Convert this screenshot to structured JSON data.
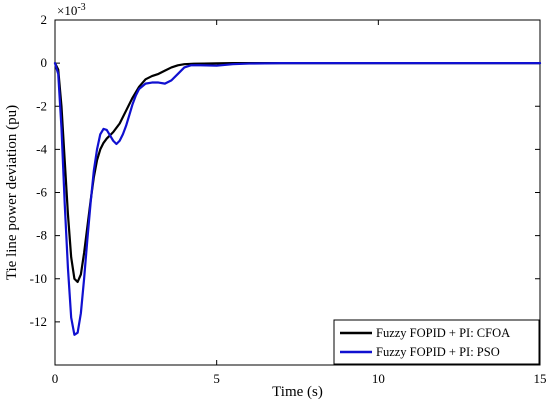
{
  "chart_data": {
    "type": "line",
    "title": "",
    "xlabel": "Time (s)",
    "ylabel": "Tie line power deviation (pu)",
    "y_exponent_label": "×10",
    "y_exponent_power": "-3",
    "xlim": [
      0,
      15
    ],
    "ylim": [
      -14,
      2
    ],
    "xticks": [
      0,
      5,
      10,
      15
    ],
    "yticks": [
      2,
      0,
      -2,
      -4,
      -6,
      -8,
      -10,
      -12
    ],
    "grid": false,
    "legend_position": "bottom-right",
    "series": [
      {
        "name": "Fuzzy FOPID + PI: CFOA",
        "color": "#000000",
        "x": [
          0,
          0.1,
          0.2,
          0.3,
          0.4,
          0.5,
          0.6,
          0.7,
          0.8,
          0.9,
          1.0,
          1.1,
          1.2,
          1.3,
          1.4,
          1.5,
          1.6,
          1.8,
          2.0,
          2.2,
          2.4,
          2.6,
          2.8,
          3.0,
          3.2,
          3.4,
          3.6,
          3.8,
          4.0,
          4.3,
          4.6,
          5.0,
          5.5,
          6.0,
          7.0,
          10.0,
          15.0
        ],
        "values": [
          0,
          -0.3,
          -2.0,
          -4.5,
          -7.0,
          -9.0,
          -10.0,
          -10.15,
          -9.8,
          -8.8,
          -7.6,
          -6.4,
          -5.3,
          -4.5,
          -4.0,
          -3.7,
          -3.5,
          -3.2,
          -2.8,
          -2.2,
          -1.6,
          -1.1,
          -0.75,
          -0.6,
          -0.5,
          -0.35,
          -0.2,
          -0.1,
          -0.05,
          -0.03,
          -0.02,
          -0.01,
          0,
          0,
          0,
          0,
          0
        ]
      },
      {
        "name": "Fuzzy FOPID + PI: PSO",
        "color": "#1010d0",
        "x": [
          0,
          0.1,
          0.2,
          0.3,
          0.4,
          0.5,
          0.6,
          0.7,
          0.8,
          0.9,
          1.0,
          1.1,
          1.2,
          1.3,
          1.4,
          1.5,
          1.6,
          1.7,
          1.8,
          1.9,
          2.0,
          2.1,
          2.2,
          2.3,
          2.4,
          2.5,
          2.6,
          2.8,
          3.0,
          3.2,
          3.4,
          3.6,
          3.8,
          4.0,
          4.2,
          4.5,
          5.0,
          5.5,
          6.0,
          6.5,
          7.0,
          10.0,
          15.0
        ],
        "values": [
          0,
          -0.5,
          -3.0,
          -6.5,
          -9.5,
          -11.8,
          -12.6,
          -12.5,
          -11.6,
          -10.0,
          -8.2,
          -6.5,
          -5.0,
          -4.0,
          -3.3,
          -3.05,
          -3.1,
          -3.35,
          -3.6,
          -3.75,
          -3.6,
          -3.3,
          -2.9,
          -2.4,
          -1.9,
          -1.5,
          -1.2,
          -0.95,
          -0.9,
          -0.9,
          -0.95,
          -0.8,
          -0.5,
          -0.2,
          -0.1,
          -0.1,
          -0.12,
          -0.05,
          -0.02,
          -0.01,
          0,
          0,
          0
        ]
      }
    ]
  }
}
